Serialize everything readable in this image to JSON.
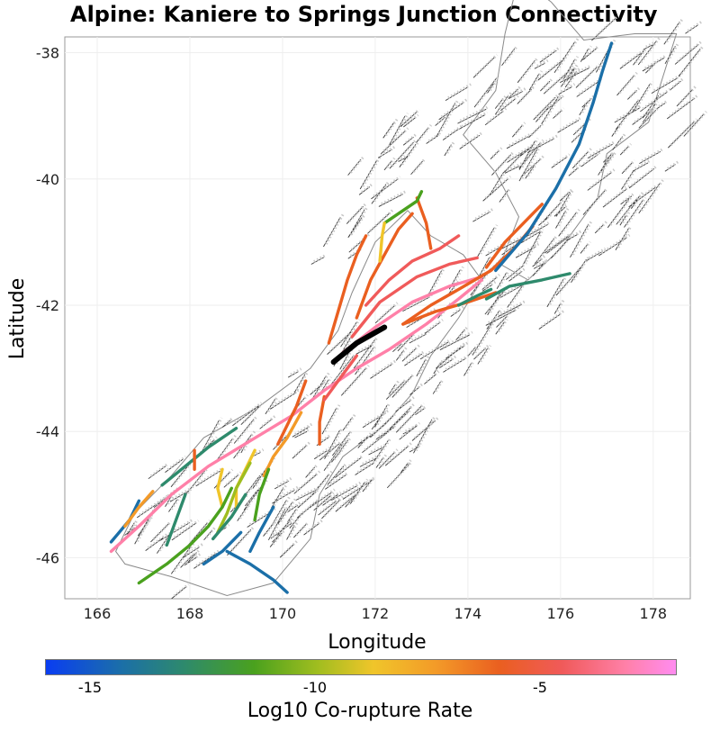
{
  "title": "Alpine: Kaniere to Springs Junction Connectivity",
  "chart_data": {
    "type": "map",
    "xlabel": "Longitude",
    "ylabel": "Latitude",
    "xlim": [
      165.3,
      178.8
    ],
    "ylim": [
      -46.65,
      -37.75
    ],
    "x_ticks": [
      "166",
      "168",
      "170",
      "172",
      "174",
      "176",
      "178"
    ],
    "y_ticks": [
      "-38",
      "-40",
      "-42",
      "-44",
      "-46"
    ],
    "grid": true,
    "colorbar": {
      "label": "Log10 Co-rupture Rate",
      "ticks": [
        "-15",
        "-10",
        "-5"
      ],
      "range": [
        -16,
        -2
      ],
      "colors": [
        "#0a3df2",
        "#1b6fa8",
        "#2e8a6c",
        "#4aa11e",
        "#9fbd1f",
        "#f0c52a",
        "#f39a28",
        "#ea5f20",
        "#f05a5a",
        "#ff80a8",
        "#ff8cf0"
      ]
    },
    "highlighted_section_color": "#000000",
    "fault_traces": [
      {
        "color": "#ff80a8",
        "pts": [
          [
            166.3,
            -45.9
          ],
          [
            166.9,
            -45.5
          ],
          [
            167.6,
            -45.0
          ],
          [
            168.4,
            -44.55
          ],
          [
            169.3,
            -44.15
          ],
          [
            170.2,
            -43.75
          ],
          [
            170.9,
            -43.35
          ],
          [
            171.6,
            -43.0
          ],
          [
            172.3,
            -42.7
          ],
          [
            173.1,
            -42.3
          ],
          [
            173.8,
            -41.9
          ],
          [
            174.3,
            -41.6
          ]
        ]
      },
      {
        "color": "#ff80a8",
        "pts": [
          [
            171.3,
            -42.75
          ],
          [
            172.0,
            -42.35
          ],
          [
            172.8,
            -41.95
          ],
          [
            173.6,
            -41.7
          ],
          [
            174.3,
            -41.55
          ]
        ]
      },
      {
        "color": "#f05a5a",
        "pts": [
          [
            171.5,
            -42.5
          ],
          [
            172.1,
            -41.95
          ],
          [
            172.9,
            -41.55
          ],
          [
            173.6,
            -41.35
          ],
          [
            174.2,
            -41.25
          ]
        ]
      },
      {
        "color": "#f05a5a",
        "pts": [
          [
            171.8,
            -42.0
          ],
          [
            172.3,
            -41.6
          ],
          [
            172.8,
            -41.3
          ],
          [
            173.4,
            -41.1
          ],
          [
            173.8,
            -40.9
          ]
        ]
      },
      {
        "color": "#ea5f20",
        "pts": [
          [
            171.6,
            -42.2
          ],
          [
            171.9,
            -41.6
          ],
          [
            172.2,
            -41.2
          ],
          [
            172.5,
            -40.8
          ],
          [
            172.8,
            -40.55
          ]
        ]
      },
      {
        "color": "#ea5f20",
        "pts": [
          [
            171.0,
            -42.6
          ],
          [
            171.2,
            -42.1
          ],
          [
            171.4,
            -41.6
          ],
          [
            171.6,
            -41.2
          ],
          [
            171.8,
            -40.9
          ]
        ]
      },
      {
        "color": "#ea5f20",
        "pts": [
          [
            172.6,
            -42.3
          ],
          [
            173.2,
            -42.0
          ],
          [
            173.8,
            -41.75
          ],
          [
            174.5,
            -41.45
          ],
          [
            175.0,
            -41.1
          ],
          [
            175.4,
            -40.75
          ]
        ]
      },
      {
        "color": "#ea5f20",
        "pts": [
          [
            172.6,
            -42.3
          ],
          [
            173.3,
            -42.1
          ],
          [
            174.0,
            -41.95
          ],
          [
            174.6,
            -41.8
          ]
        ]
      },
      {
        "color": "#ea5f20",
        "pts": [
          [
            172.9,
            -40.3
          ],
          [
            173.1,
            -40.7
          ],
          [
            173.2,
            -41.1
          ]
        ]
      },
      {
        "color": "#4aa11e",
        "pts": [
          [
            172.2,
            -40.7
          ],
          [
            172.6,
            -40.5
          ],
          [
            172.9,
            -40.35
          ],
          [
            173.0,
            -40.2
          ]
        ]
      },
      {
        "color": "#f0c52a",
        "pts": [
          [
            172.1,
            -41.3
          ],
          [
            172.15,
            -40.9
          ],
          [
            172.2,
            -40.7
          ]
        ]
      },
      {
        "color": "#ea5f20",
        "pts": [
          [
            174.4,
            -41.4
          ],
          [
            174.8,
            -41.0
          ],
          [
            175.2,
            -40.7
          ],
          [
            175.6,
            -40.4
          ]
        ]
      },
      {
        "color": "#1b6fa8",
        "pts": [
          [
            174.6,
            -41.45
          ],
          [
            175.3,
            -40.85
          ],
          [
            175.9,
            -40.15
          ],
          [
            176.4,
            -39.45
          ],
          [
            176.7,
            -38.8
          ],
          [
            176.9,
            -38.3
          ],
          [
            177.1,
            -37.85
          ]
        ]
      },
      {
        "color": "#2e8a6c",
        "pts": [
          [
            174.4,
            -41.9
          ],
          [
            174.9,
            -41.7
          ],
          [
            175.6,
            -41.6
          ],
          [
            176.2,
            -41.5
          ]
        ]
      },
      {
        "color": "#2e8a6c",
        "pts": [
          [
            173.8,
            -42.0
          ],
          [
            174.2,
            -41.85
          ],
          [
            174.5,
            -41.75
          ]
        ]
      },
      {
        "color": "#ea5f20",
        "pts": [
          [
            170.5,
            -43.2
          ],
          [
            170.3,
            -43.6
          ],
          [
            170.1,
            -43.9
          ],
          [
            169.9,
            -44.2
          ]
        ]
      },
      {
        "color": "#ea5f20",
        "pts": [
          [
            170.9,
            -43.45
          ],
          [
            170.8,
            -43.85
          ],
          [
            170.8,
            -44.2
          ]
        ]
      },
      {
        "color": "#f39a28",
        "pts": [
          [
            170.4,
            -43.7
          ],
          [
            170.1,
            -44.1
          ],
          [
            169.8,
            -44.4
          ],
          [
            169.6,
            -44.7
          ]
        ]
      },
      {
        "color": "#f0c52a",
        "pts": [
          [
            169.4,
            -44.3
          ],
          [
            169.2,
            -44.6
          ],
          [
            169.0,
            -44.9
          ],
          [
            169.0,
            -45.2
          ]
        ]
      },
      {
        "color": "#f0c52a",
        "pts": [
          [
            168.7,
            -44.6
          ],
          [
            168.6,
            -44.9
          ],
          [
            168.7,
            -45.2
          ]
        ]
      },
      {
        "color": "#9fbd1f",
        "pts": [
          [
            169.3,
            -44.5
          ],
          [
            169.0,
            -44.9
          ],
          [
            168.8,
            -45.3
          ],
          [
            168.6,
            -45.6
          ]
        ]
      },
      {
        "color": "#4aa11e",
        "pts": [
          [
            168.9,
            -44.9
          ],
          [
            168.7,
            -45.2
          ],
          [
            168.4,
            -45.5
          ],
          [
            168.0,
            -45.8
          ],
          [
            167.5,
            -46.1
          ],
          [
            166.9,
            -46.4
          ]
        ]
      },
      {
        "color": "#4aa11e",
        "pts": [
          [
            169.7,
            -44.6
          ],
          [
            169.5,
            -45.0
          ],
          [
            169.4,
            -45.4
          ]
        ]
      },
      {
        "color": "#2e8a6c",
        "pts": [
          [
            169.2,
            -45.0
          ],
          [
            168.9,
            -45.35
          ],
          [
            168.5,
            -45.7
          ]
        ]
      },
      {
        "color": "#2e8a6c",
        "pts": [
          [
            167.4,
            -44.85
          ],
          [
            167.9,
            -44.55
          ],
          [
            168.4,
            -44.25
          ],
          [
            169.0,
            -43.95
          ]
        ]
      },
      {
        "color": "#2e8a6c",
        "pts": [
          [
            167.9,
            -45.0
          ],
          [
            167.7,
            -45.4
          ],
          [
            167.5,
            -45.8
          ]
        ]
      },
      {
        "color": "#1b6fa8",
        "pts": [
          [
            169.1,
            -45.6
          ],
          [
            168.7,
            -45.9
          ],
          [
            168.3,
            -46.1
          ]
        ]
      },
      {
        "color": "#1b6fa8",
        "pts": [
          [
            168.8,
            -45.9
          ],
          [
            169.3,
            -46.1
          ],
          [
            169.8,
            -46.35
          ],
          [
            170.1,
            -46.55
          ]
        ]
      },
      {
        "color": "#1b6fa8",
        "pts": [
          [
            169.8,
            -45.2
          ],
          [
            169.5,
            -45.6
          ],
          [
            169.3,
            -45.9
          ]
        ]
      },
      {
        "color": "#1b6fa8",
        "pts": [
          [
            166.3,
            -45.75
          ],
          [
            166.7,
            -45.4
          ],
          [
            166.9,
            -45.1
          ]
        ]
      },
      {
        "color": "#f39a28",
        "pts": [
          [
            166.6,
            -45.5
          ],
          [
            166.9,
            -45.2
          ],
          [
            167.2,
            -44.95
          ]
        ]
      },
      {
        "color": "#ea5f20",
        "pts": [
          [
            168.1,
            -44.3
          ],
          [
            168.1,
            -44.6
          ]
        ]
      },
      {
        "color": "#f05a5a",
        "pts": [
          [
            171.6,
            -42.8
          ],
          [
            171.2,
            -43.2
          ],
          [
            170.9,
            -43.5
          ]
        ]
      }
    ],
    "highlight": [
      [
        171.1,
        -42.9
      ],
      [
        171.6,
        -42.6
      ],
      [
        172.2,
        -42.35
      ]
    ]
  }
}
